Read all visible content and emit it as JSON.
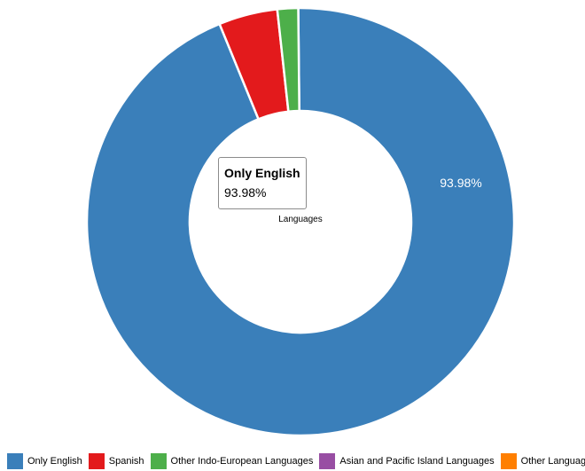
{
  "chart_data": {
    "type": "pie",
    "donut": true,
    "center_label": "Languages",
    "series": [
      {
        "name": "Only English",
        "value": 93.98,
        "color": "#3a7fba"
      },
      {
        "name": "Spanish",
        "value": 4.45,
        "color": "#e31a1c"
      },
      {
        "name": "Other Indo-European Languages",
        "value": 1.57,
        "color": "#4daf4a"
      },
      {
        "name": "Asian and Pacific Island Languages",
        "value": 0,
        "color": "#984ea3"
      },
      {
        "name": "Other Languages",
        "value": 0,
        "color": "#ff7f00"
      }
    ],
    "data_labels": [
      {
        "text": "93.98%"
      }
    ],
    "legend_position": "bottom"
  },
  "tooltip": {
    "title": "Only English",
    "value": "93.98%"
  }
}
